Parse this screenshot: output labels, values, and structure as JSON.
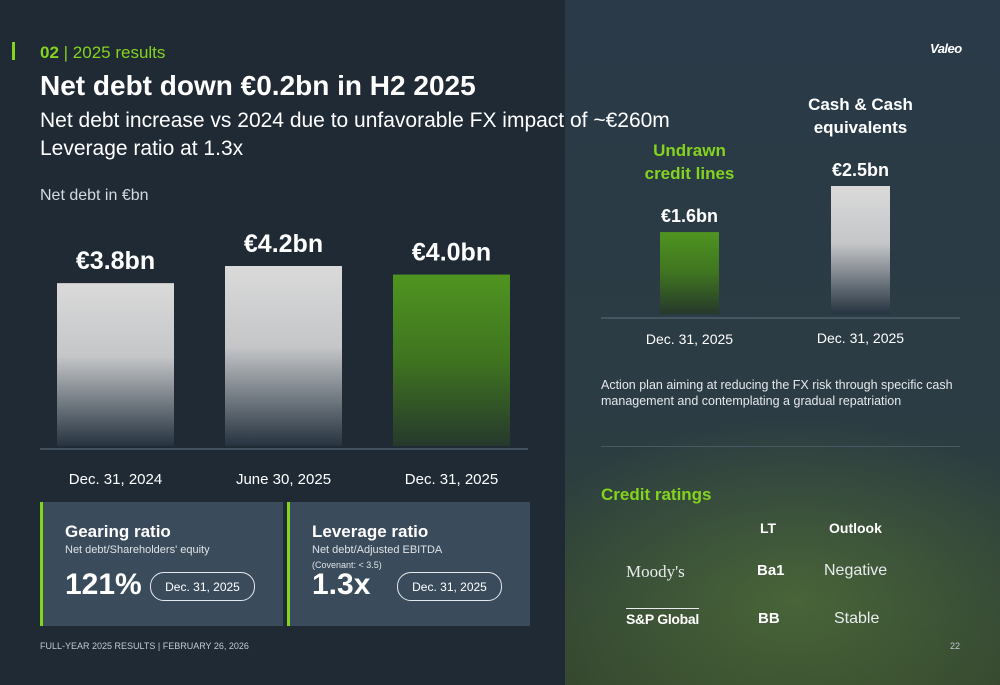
{
  "header": {
    "section_num": "02",
    "section_label": " | 2025 results",
    "title": "Net debt down €0.2bn in H2 2025",
    "subtitle_line1": "Net debt increase vs 2024 due to unfavorable FX impact of ~€260m",
    "subtitle_line2": "Leverage ratio at 1.3x",
    "logo": "Valeo"
  },
  "chart_data": [
    {
      "type": "bar",
      "title": "Net debt in €bn",
      "categories": [
        "Dec. 31, 2024",
        "June 30, 2025",
        "Dec. 31, 2025"
      ],
      "values": [
        3.8,
        4.2,
        4.0
      ],
      "labels": [
        "€3.8bn",
        "€4.2bn",
        "€4.0bn"
      ],
      "colors": [
        "#d9d9d9",
        "#d9d9d9",
        "#4a8c1e"
      ],
      "ylim": [
        0,
        4.2
      ]
    },
    {
      "type": "bar",
      "categories": [
        "Dec. 31, 2025",
        "Dec. 31, 2025"
      ],
      "series_labels": [
        "Undrawn credit lines",
        "Cash & Cash equivalents"
      ],
      "values": [
        1.6,
        2.5
      ],
      "labels": [
        "€1.6bn",
        "€2.5bn"
      ],
      "colors": [
        "#4a8c1e",
        "#d9d9d9"
      ],
      "label_colors": [
        "#84d31e",
        "#ffffff"
      ],
      "ylim": [
        0,
        2.5
      ]
    }
  ],
  "ratios": [
    {
      "title": "Gearing ratio",
      "subtitle": "Net debt/Shareholders' equity",
      "covenant": "",
      "value": "121%",
      "date": "Dec. 31, 2025"
    },
    {
      "title": "Leverage ratio",
      "subtitle": "Net debt/Adjusted EBITDA",
      "covenant": "(Covenant: < 3.5)",
      "value": "1.3x",
      "date": "Dec. 31, 2025"
    }
  ],
  "note": "Action plan aiming at reducing the FX risk through specific cash management and contemplating a gradual repatriation",
  "credit_ratings": {
    "title": "Credit ratings",
    "col_lt": "LT",
    "col_outlook": "Outlook",
    "rows": [
      {
        "agency": "Moody's",
        "lt": "Ba1",
        "outlook": "Negative"
      },
      {
        "agency": "S&P Global",
        "lt": "BB",
        "outlook": "Stable"
      }
    ]
  },
  "footer": {
    "text": "FULL-YEAR 2025 RESULTS | FEBRUARY 26, 2026",
    "page": "22"
  }
}
